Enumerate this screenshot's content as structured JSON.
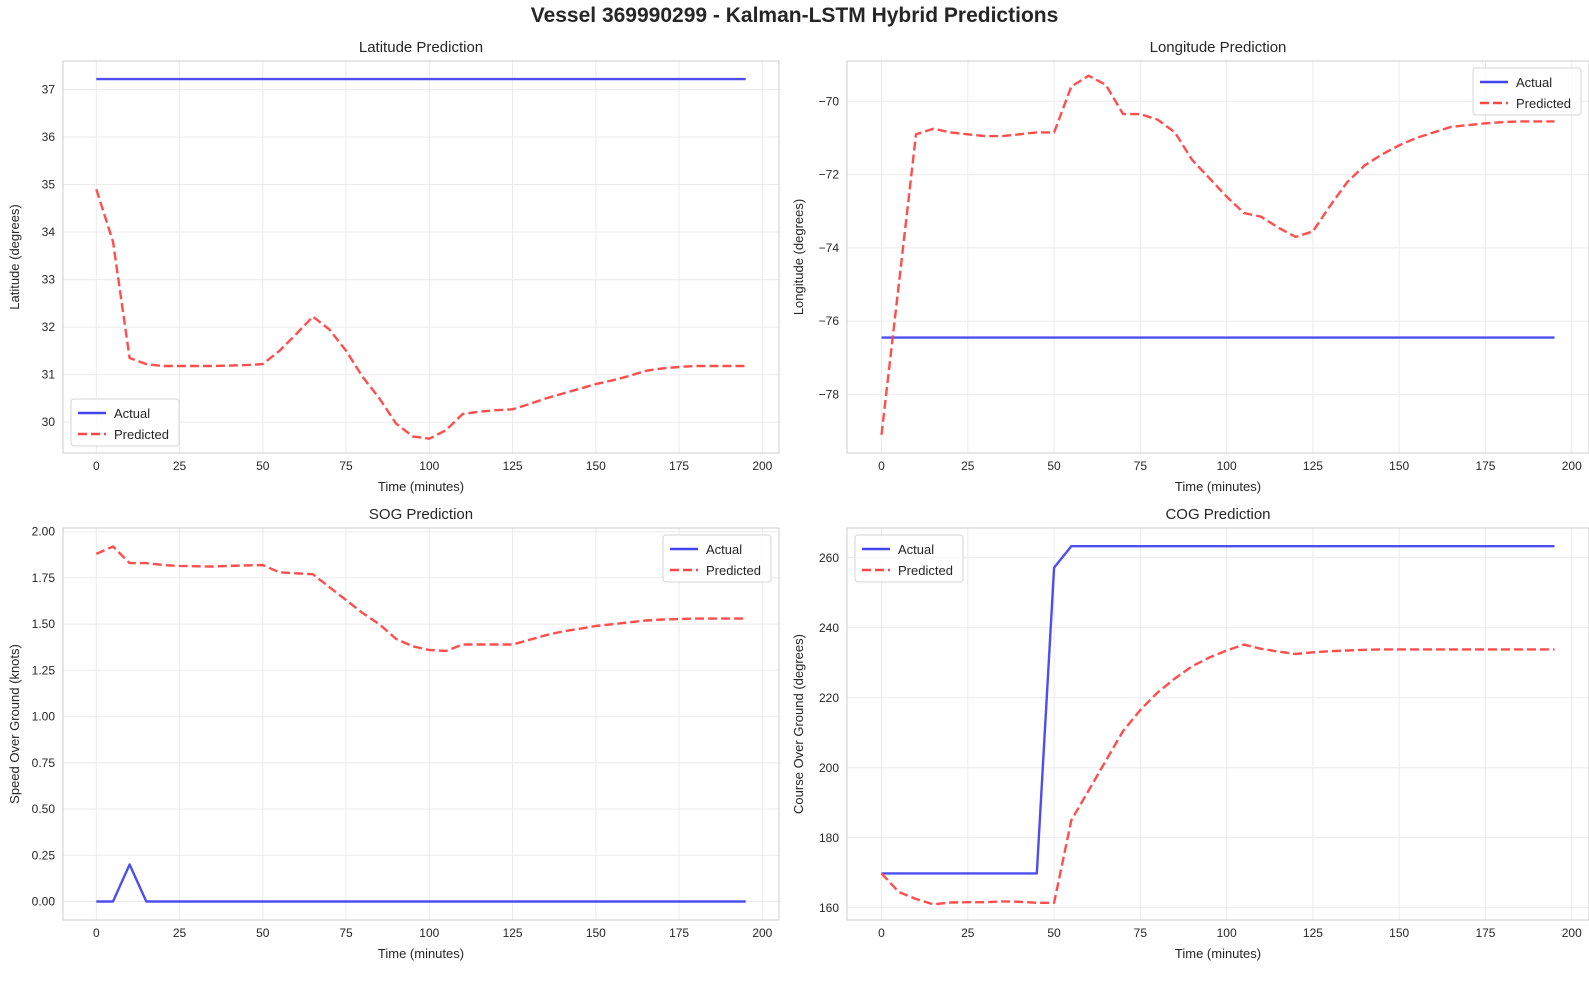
{
  "figure_title": "Vessel 369990299 - Kalman-LSTM Hybrid Predictions",
  "colors": {
    "actual": "#4444ee",
    "predicted": "#ff4444",
    "grid": "#ebebeb",
    "spine": "#cccccc"
  },
  "chart_data": [
    {
      "type": "line",
      "title": "Latitude Prediction",
      "xlabel": "Time (minutes)",
      "ylabel": "Latitude (degrees)",
      "xlim": [
        -10,
        205
      ],
      "ylim": [
        29.35,
        37.6
      ],
      "xticks": [
        0,
        25,
        50,
        75,
        100,
        125,
        150,
        175,
        200
      ],
      "yticks": [
        30,
        31,
        32,
        33,
        34,
        35,
        36,
        37
      ],
      "ytick_labels": [
        "30",
        "31",
        "32",
        "33",
        "34",
        "35",
        "36",
        "37"
      ],
      "grid": true,
      "legend_position": "lower-left",
      "series": [
        {
          "name": "Actual",
          "style": "solid",
          "x": [
            0,
            195
          ],
          "y": [
            37.22,
            37.22
          ]
        },
        {
          "name": "Predicted",
          "style": "dashed",
          "x": [
            0,
            5,
            10,
            15,
            20,
            25,
            30,
            35,
            40,
            45,
            50,
            55,
            60,
            65,
            70,
            75,
            80,
            85,
            90,
            95,
            100,
            105,
            110,
            115,
            120,
            125,
            130,
            135,
            140,
            145,
            150,
            155,
            160,
            165,
            170,
            175,
            180,
            185,
            190,
            195
          ],
          "y": [
            34.9,
            33.8,
            31.35,
            31.22,
            31.18,
            31.18,
            31.18,
            31.18,
            31.19,
            31.2,
            31.22,
            31.5,
            31.85,
            32.22,
            31.95,
            31.5,
            30.95,
            30.5,
            29.97,
            29.7,
            29.65,
            29.83,
            30.17,
            30.22,
            30.25,
            30.27,
            30.38,
            30.5,
            30.6,
            30.7,
            30.8,
            30.88,
            30.97,
            31.08,
            31.13,
            31.16,
            31.18,
            31.18,
            31.18,
            31.18
          ]
        }
      ]
    },
    {
      "type": "line",
      "title": "Longitude Prediction",
      "xlabel": "Time (minutes)",
      "ylabel": "Longitude (degrees)",
      "xlim": [
        -10,
        205
      ],
      "ylim": [
        -79.6,
        -68.9
      ],
      "xticks": [
        0,
        25,
        50,
        75,
        100,
        125,
        150,
        175,
        200
      ],
      "yticks": [
        -78,
        -76,
        -74,
        -72,
        -70
      ],
      "ytick_labels": [
        "−78",
        "−76",
        "−74",
        "−72",
        "−70"
      ],
      "grid": true,
      "legend_position": "upper-right",
      "series": [
        {
          "name": "Actual",
          "style": "solid",
          "x": [
            0,
            195
          ],
          "y": [
            -76.45,
            -76.45
          ]
        },
        {
          "name": "Predicted",
          "style": "dashed",
          "x": [
            0,
            5,
            10,
            15,
            20,
            25,
            30,
            35,
            40,
            45,
            50,
            55,
            60,
            65,
            70,
            75,
            80,
            85,
            90,
            95,
            100,
            105,
            110,
            115,
            120,
            125,
            130,
            135,
            140,
            145,
            150,
            155,
            160,
            165,
            170,
            175,
            180,
            185,
            190,
            195
          ],
          "y": [
            -79.1,
            -75.0,
            -70.9,
            -70.75,
            -70.85,
            -70.9,
            -70.95,
            -70.95,
            -70.9,
            -70.85,
            -70.85,
            -69.6,
            -69.3,
            -69.55,
            -70.35,
            -70.35,
            -70.5,
            -70.85,
            -71.6,
            -72.1,
            -72.6,
            -73.05,
            -73.15,
            -73.45,
            -73.7,
            -73.55,
            -72.85,
            -72.2,
            -71.75,
            -71.45,
            -71.2,
            -71.0,
            -70.85,
            -70.7,
            -70.65,
            -70.6,
            -70.57,
            -70.55,
            -70.55,
            -70.55
          ]
        }
      ]
    },
    {
      "type": "line",
      "title": "SOG Prediction",
      "xlabel": "Time (minutes)",
      "ylabel": "Speed Over Ground (knots)",
      "xlim": [
        -10,
        205
      ],
      "ylim": [
        -0.1,
        2.02
      ],
      "xticks": [
        0,
        25,
        50,
        75,
        100,
        125,
        150,
        175,
        200
      ],
      "yticks": [
        0,
        0.25,
        0.5,
        0.75,
        1.0,
        1.25,
        1.5,
        1.75,
        2.0
      ],
      "ytick_labels": [
        "0.00",
        "0.25",
        "0.50",
        "0.75",
        "1.00",
        "1.25",
        "1.50",
        "1.75",
        "2.00"
      ],
      "grid": true,
      "legend_position": "upper-right",
      "series": [
        {
          "name": "Actual",
          "style": "solid",
          "x": [
            0,
            5,
            10,
            15,
            195
          ],
          "y": [
            0,
            0,
            0.2,
            0,
            0
          ]
        },
        {
          "name": "Predicted",
          "style": "dashed",
          "x": [
            0,
            5,
            10,
            15,
            20,
            25,
            30,
            35,
            40,
            45,
            50,
            55,
            60,
            65,
            70,
            75,
            80,
            85,
            90,
            95,
            100,
            105,
            110,
            115,
            120,
            125,
            130,
            135,
            140,
            145,
            150,
            155,
            160,
            165,
            170,
            175,
            180,
            185,
            190,
            195
          ],
          "y": [
            1.88,
            1.92,
            1.83,
            1.83,
            1.82,
            1.815,
            1.813,
            1.812,
            1.815,
            1.818,
            1.82,
            1.78,
            1.775,
            1.77,
            1.7,
            1.63,
            1.56,
            1.5,
            1.42,
            1.38,
            1.36,
            1.355,
            1.39,
            1.39,
            1.39,
            1.39,
            1.415,
            1.44,
            1.46,
            1.475,
            1.49,
            1.5,
            1.51,
            1.52,
            1.525,
            1.528,
            1.53,
            1.53,
            1.53,
            1.53
          ]
        }
      ]
    },
    {
      "type": "line",
      "title": "COG Prediction",
      "xlabel": "Time (minutes)",
      "ylabel": "Course Over Ground (degrees)",
      "xlim": [
        -10,
        205
      ],
      "ylim": [
        156.5,
        268.5
      ],
      "xticks": [
        0,
        25,
        50,
        75,
        100,
        125,
        150,
        175,
        200
      ],
      "yticks": [
        160,
        180,
        200,
        220,
        240,
        260
      ],
      "ytick_labels": [
        "160",
        "180",
        "200",
        "220",
        "240",
        "260"
      ],
      "grid": true,
      "legend_position": "upper-left",
      "series": [
        {
          "name": "Actual",
          "style": "solid",
          "x": [
            0,
            45,
            50,
            55,
            195
          ],
          "y": [
            169.8,
            169.8,
            257.2,
            263.3,
            263.3
          ]
        },
        {
          "name": "Predicted",
          "style": "dashed",
          "x": [
            0,
            5,
            10,
            15,
            20,
            25,
            30,
            35,
            40,
            45,
            50,
            55,
            60,
            65,
            70,
            75,
            80,
            85,
            90,
            95,
            100,
            105,
            110,
            115,
            120,
            125,
            130,
            135,
            140,
            145,
            150,
            155,
            160,
            165,
            170,
            175,
            180,
            185,
            190,
            195
          ],
          "y": [
            169.8,
            164.5,
            162.5,
            161.0,
            161.5,
            161.6,
            161.6,
            161.8,
            161.7,
            161.4,
            161.4,
            185.0,
            193.5,
            202.0,
            210.5,
            216.5,
            221.5,
            225.5,
            229.0,
            231.5,
            233.5,
            235.2,
            234.0,
            233.2,
            232.5,
            233.0,
            233.3,
            233.5,
            233.7,
            233.8,
            233.8,
            233.8,
            233.8,
            233.8,
            233.8,
            233.8,
            233.8,
            233.8,
            233.8,
            233.8
          ]
        }
      ]
    }
  ]
}
